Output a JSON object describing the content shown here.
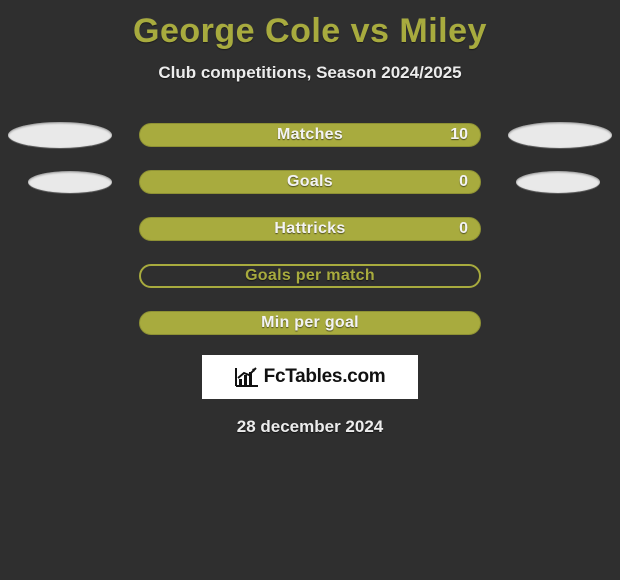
{
  "title": "George Cole vs Miley",
  "subtitle": "Club competitions, Season 2024/2025",
  "colors": {
    "accent": "#a8ab3e",
    "background": "#2f2f2f",
    "ellipse": "#e9e9e9",
    "text": "#ececec"
  },
  "rows": [
    {
      "label": "Matches",
      "value": "10",
      "has_value": true,
      "hollow": false,
      "left_ellipse": "large",
      "right_ellipse": "large"
    },
    {
      "label": "Goals",
      "value": "0",
      "has_value": true,
      "hollow": false,
      "left_ellipse": "small",
      "right_ellipse": "small"
    },
    {
      "label": "Hattricks",
      "value": "0",
      "has_value": true,
      "hollow": false,
      "left_ellipse": "none",
      "right_ellipse": "none"
    },
    {
      "label": "Goals per match",
      "value": "",
      "has_value": false,
      "hollow": true,
      "left_ellipse": "none",
      "right_ellipse": "none"
    },
    {
      "label": "Min per goal",
      "value": "",
      "has_value": false,
      "hollow": false,
      "left_ellipse": "none",
      "right_ellipse": "none"
    }
  ],
  "brand": "FcTables.com",
  "date": "28 december 2024"
}
